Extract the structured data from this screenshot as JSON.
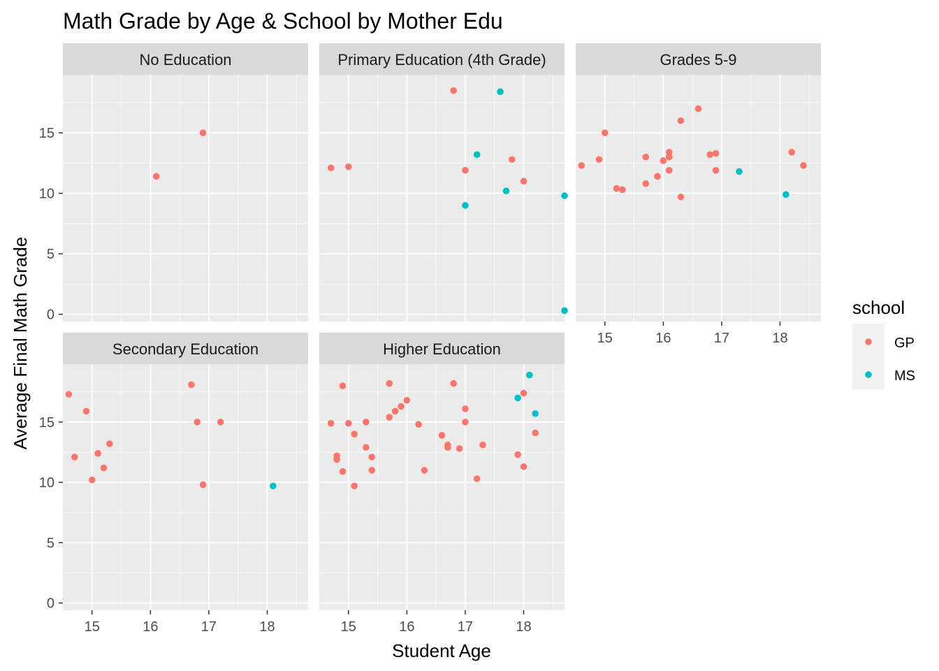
{
  "chart_data": {
    "type": "scatter",
    "title": "Math Grade by Age & School by Mother Edu",
    "xlabel": "Student Age",
    "ylabel": "Average Final Math Grade",
    "xlim": [
      14.5,
      18.7
    ],
    "ylim": [
      -0.6,
      19.8
    ],
    "x_ticks": [
      15,
      16,
      17,
      18
    ],
    "y_ticks": [
      0,
      5,
      10,
      15
    ],
    "grid": true,
    "legend": {
      "title": "school",
      "position": "right",
      "entries": [
        {
          "name": "GP",
          "color": "#F8766D"
        },
        {
          "name": "MS",
          "color": "#00BFC4"
        }
      ]
    },
    "facets": [
      {
        "label": "No Education",
        "points": [
          {
            "x": 16.1,
            "y": 11.4,
            "school": "GP"
          },
          {
            "x": 16.9,
            "y": 15.0,
            "school": "GP"
          }
        ]
      },
      {
        "label": "Primary Education (4th Grade)",
        "points": [
          {
            "x": 14.7,
            "y": 12.1,
            "school": "GP"
          },
          {
            "x": 15.0,
            "y": 12.2,
            "school": "GP"
          },
          {
            "x": 16.8,
            "y": 18.5,
            "school": "GP"
          },
          {
            "x": 17.0,
            "y": 11.9,
            "school": "GP"
          },
          {
            "x": 17.8,
            "y": 12.8,
            "school": "GP"
          },
          {
            "x": 18.0,
            "y": 11.0,
            "school": "GP"
          },
          {
            "x": 17.0,
            "y": 9.0,
            "school": "MS"
          },
          {
            "x": 17.2,
            "y": 13.2,
            "school": "MS"
          },
          {
            "x": 17.6,
            "y": 18.4,
            "school": "MS"
          },
          {
            "x": 17.7,
            "y": 10.2,
            "school": "MS"
          },
          {
            "x": 18.7,
            "y": 9.8,
            "school": "MS"
          },
          {
            "x": 18.7,
            "y": 0.3,
            "school": "MS"
          }
        ]
      },
      {
        "label": "Grades 5-9",
        "points": [
          {
            "x": 14.6,
            "y": 12.3,
            "school": "GP"
          },
          {
            "x": 14.9,
            "y": 12.8,
            "school": "GP"
          },
          {
            "x": 15.0,
            "y": 15.0,
            "school": "GP"
          },
          {
            "x": 15.2,
            "y": 10.4,
            "school": "GP"
          },
          {
            "x": 15.3,
            "y": 10.3,
            "school": "GP"
          },
          {
            "x": 15.7,
            "y": 10.8,
            "school": "GP"
          },
          {
            "x": 15.7,
            "y": 13.0,
            "school": "GP"
          },
          {
            "x": 15.9,
            "y": 11.4,
            "school": "GP"
          },
          {
            "x": 16.0,
            "y": 12.7,
            "school": "GP"
          },
          {
            "x": 16.1,
            "y": 13.0,
            "school": "GP"
          },
          {
            "x": 16.1,
            "y": 13.4,
            "school": "GP"
          },
          {
            "x": 16.1,
            "y": 11.9,
            "school": "GP"
          },
          {
            "x": 16.3,
            "y": 9.7,
            "school": "GP"
          },
          {
            "x": 16.3,
            "y": 16.0,
            "school": "GP"
          },
          {
            "x": 16.6,
            "y": 17.0,
            "school": "GP"
          },
          {
            "x": 16.8,
            "y": 13.2,
            "school": "GP"
          },
          {
            "x": 16.9,
            "y": 11.9,
            "school": "GP"
          },
          {
            "x": 16.9,
            "y": 13.3,
            "school": "GP"
          },
          {
            "x": 18.2,
            "y": 13.4,
            "school": "GP"
          },
          {
            "x": 18.4,
            "y": 12.3,
            "school": "GP"
          },
          {
            "x": 17.3,
            "y": 11.8,
            "school": "MS"
          },
          {
            "x": 18.1,
            "y": 9.9,
            "school": "MS"
          }
        ]
      },
      {
        "label": "Secondary Education",
        "points": [
          {
            "x": 14.6,
            "y": 17.3,
            "school": "GP"
          },
          {
            "x": 14.7,
            "y": 12.1,
            "school": "GP"
          },
          {
            "x": 14.9,
            "y": 15.9,
            "school": "GP"
          },
          {
            "x": 15.0,
            "y": 10.2,
            "school": "GP"
          },
          {
            "x": 15.1,
            "y": 12.4,
            "school": "GP"
          },
          {
            "x": 15.2,
            "y": 11.2,
            "school": "GP"
          },
          {
            "x": 15.3,
            "y": 13.2,
            "school": "GP"
          },
          {
            "x": 16.7,
            "y": 18.1,
            "school": "GP"
          },
          {
            "x": 16.8,
            "y": 15.0,
            "school": "GP"
          },
          {
            "x": 16.9,
            "y": 9.8,
            "school": "GP"
          },
          {
            "x": 17.2,
            "y": 15.0,
            "school": "GP"
          },
          {
            "x": 18.1,
            "y": 9.7,
            "school": "MS"
          }
        ]
      },
      {
        "label": "Higher Education",
        "points": [
          {
            "x": 14.7,
            "y": 14.9,
            "school": "GP"
          },
          {
            "x": 14.8,
            "y": 12.2,
            "school": "GP"
          },
          {
            "x": 14.8,
            "y": 11.9,
            "school": "GP"
          },
          {
            "x": 14.9,
            "y": 18.0,
            "school": "GP"
          },
          {
            "x": 14.9,
            "y": 10.9,
            "school": "GP"
          },
          {
            "x": 15.0,
            "y": 14.9,
            "school": "GP"
          },
          {
            "x": 15.1,
            "y": 14.0,
            "school": "GP"
          },
          {
            "x": 15.1,
            "y": 9.7,
            "school": "GP"
          },
          {
            "x": 15.3,
            "y": 12.9,
            "school": "GP"
          },
          {
            "x": 15.3,
            "y": 15.0,
            "school": "GP"
          },
          {
            "x": 15.4,
            "y": 12.1,
            "school": "GP"
          },
          {
            "x": 15.4,
            "y": 11.0,
            "school": "GP"
          },
          {
            "x": 15.7,
            "y": 18.2,
            "school": "GP"
          },
          {
            "x": 15.7,
            "y": 15.4,
            "school": "GP"
          },
          {
            "x": 15.8,
            "y": 15.9,
            "school": "GP"
          },
          {
            "x": 15.9,
            "y": 16.3,
            "school": "GP"
          },
          {
            "x": 16.0,
            "y": 16.8,
            "school": "GP"
          },
          {
            "x": 16.2,
            "y": 14.8,
            "school": "GP"
          },
          {
            "x": 16.3,
            "y": 11.0,
            "school": "GP"
          },
          {
            "x": 16.6,
            "y": 13.9,
            "school": "GP"
          },
          {
            "x": 16.7,
            "y": 12.9,
            "school": "GP"
          },
          {
            "x": 16.7,
            "y": 13.1,
            "school": "GP"
          },
          {
            "x": 16.8,
            "y": 18.2,
            "school": "GP"
          },
          {
            "x": 16.9,
            "y": 12.8,
            "school": "GP"
          },
          {
            "x": 17.0,
            "y": 16.1,
            "school": "GP"
          },
          {
            "x": 17.0,
            "y": 15.0,
            "school": "GP"
          },
          {
            "x": 17.2,
            "y": 10.3,
            "school": "GP"
          },
          {
            "x": 17.3,
            "y": 13.1,
            "school": "GP"
          },
          {
            "x": 17.9,
            "y": 12.3,
            "school": "GP"
          },
          {
            "x": 18.0,
            "y": 17.4,
            "school": "GP"
          },
          {
            "x": 18.0,
            "y": 11.3,
            "school": "GP"
          },
          {
            "x": 18.2,
            "y": 14.1,
            "school": "GP"
          },
          {
            "x": 17.9,
            "y": 17.0,
            "school": "MS"
          },
          {
            "x": 18.1,
            "y": 18.9,
            "school": "MS"
          },
          {
            "x": 18.2,
            "y": 15.7,
            "school": "MS"
          }
        ]
      }
    ]
  }
}
